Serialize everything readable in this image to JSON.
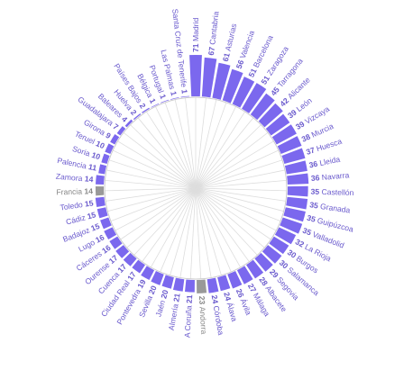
{
  "chart_data": {
    "type": "bar",
    "layout": "radial",
    "title": "",
    "categories": [
      "Madrid",
      "Cantabria",
      "Asturias",
      "Valencia",
      "Barcelona",
      "Zaragoza",
      "Tarragona",
      "Alicante",
      "León",
      "Vizcaya",
      "Murcia",
      "Huesca",
      "Lleida",
      "Navarra",
      "Castellón",
      "Granada",
      "Guipúzcoa",
      "Valladolid",
      "La Rioja",
      "Burgos",
      "Salamanca",
      "Segovia",
      "Albacete",
      "Málaga",
      "Ávila",
      "Álava",
      "Córdoba",
      "Andorra",
      "A Coruña",
      "Almería",
      "Jaén",
      "Sevilla",
      "Pontevedra",
      "Ciudad Real",
      "Cuenca",
      "Ourense",
      "Cáceres",
      "Lugo",
      "Badajoz",
      "Cádiz",
      "Toledo",
      "Francia",
      "Zamora",
      "Palencia",
      "Soria",
      "Teruel",
      "Girona",
      "Guadalajara",
      "Baleares",
      "Huelva",
      "Países Bajos",
      "Bélgica",
      "Portugal",
      "Las Palmas",
      "Santa Cruz de Tenerife"
    ],
    "values": [
      71,
      67,
      61,
      56,
      51,
      51,
      45,
      42,
      39,
      39,
      38,
      37,
      36,
      36,
      35,
      35,
      35,
      35,
      32,
      30,
      30,
      29,
      28,
      27,
      26,
      24,
      24,
      23,
      21,
      21,
      20,
      20,
      19,
      17,
      17,
      17,
      16,
      16,
      15,
      15,
      15,
      14,
      14,
      11,
      10,
      10,
      9,
      7,
      4,
      2,
      2,
      1,
      1,
      1,
      1
    ],
    "highlighted": [
      "Andorra",
      "Francia"
    ],
    "colors": {
      "spain": "#7b68ee",
      "other": "#999999",
      "label_spain": "#6a5acd",
      "label_other": "#888888",
      "grid": "#dddddd"
    }
  }
}
